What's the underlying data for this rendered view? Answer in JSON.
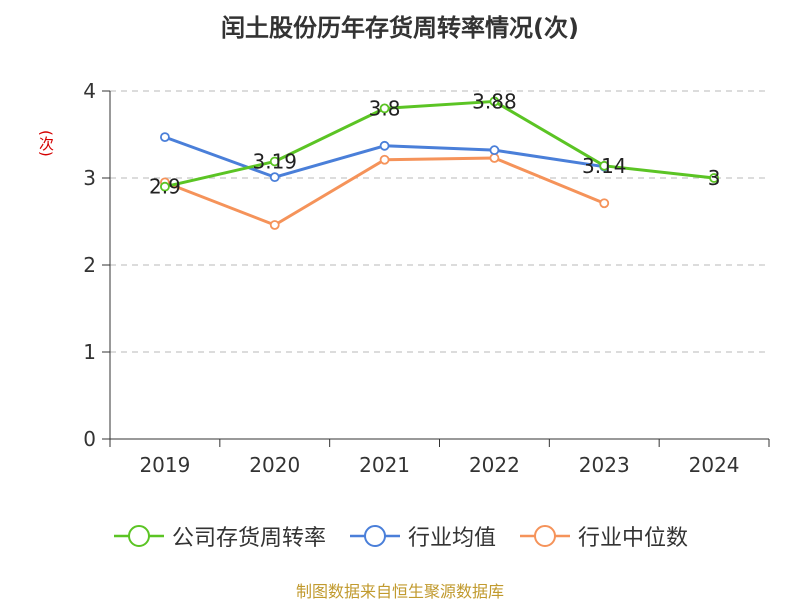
{
  "chart_data": {
    "type": "line",
    "title": "闰土股份历年存货周转率情况(次)",
    "ylabel": "(次)",
    "ylim": [
      0,
      4
    ],
    "yticks": [
      0,
      1,
      2,
      3,
      4
    ],
    "categories": [
      "2019",
      "2020",
      "2021",
      "2022",
      "2023",
      "2024"
    ],
    "grid": true,
    "legend_position": "bottom",
    "series": [
      {
        "name": "公司存货周转率",
        "color": "#5bc424",
        "values": [
          2.9,
          3.19,
          3.8,
          3.88,
          3.14,
          3
        ],
        "labels": [
          "2.9",
          "3.19",
          "3.8",
          "3.88",
          "3.14",
          "3"
        ],
        "show_labels": true
      },
      {
        "name": "行业均值",
        "color": "#4a7fd9",
        "values": [
          3.47,
          3.01,
          3.37,
          3.32,
          3.13,
          null
        ],
        "show_labels": false
      },
      {
        "name": "行业中位数",
        "color": "#f5935a",
        "values": [
          2.95,
          2.46,
          3.21,
          3.23,
          2.71,
          null
        ],
        "show_labels": false
      }
    ]
  },
  "source": "制图数据来自恒生聚源数据库"
}
